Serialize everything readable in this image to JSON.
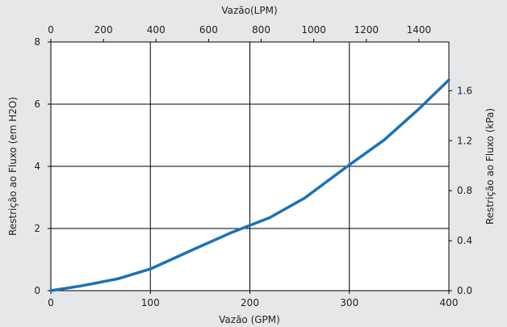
{
  "chart_data": {
    "type": "line",
    "xlabel_bottom": "Vazão (GPM)",
    "xlabel_top": "Vazão(LPM)",
    "ylabel_left": "Restrição ao Fluxo (em H2O)",
    "ylabel_right": "Restrição ao Fluxo (kPa)",
    "xlim_bottom": [
      0,
      400
    ],
    "xticks_bottom": [
      "0",
      "100",
      "200",
      "300",
      "400"
    ],
    "xlim_top": [
      0,
      1514
    ],
    "xticks_top": [
      "0",
      "200",
      "400",
      "600",
      "800",
      "1000",
      "1200",
      "1400"
    ],
    "ylim_left": [
      0,
      8
    ],
    "yticks_left": [
      "0",
      "2",
      "4",
      "6",
      "8"
    ],
    "ylim_right": [
      0,
      1.99
    ],
    "yticks_right": [
      "0.0",
      "0.4",
      "0.8",
      "1.2",
      "1.6"
    ],
    "grid": true,
    "line_color": "#1a72b8",
    "series": [
      {
        "x": [
          0,
          30,
          67,
          100,
          145,
          180,
          220,
          255,
          300,
          335,
          370,
          400
        ],
        "y": [
          0,
          0.15,
          0.38,
          0.7,
          1.35,
          1.85,
          2.35,
          2.98,
          4.05,
          4.85,
          5.85,
          6.78
        ]
      }
    ]
  }
}
